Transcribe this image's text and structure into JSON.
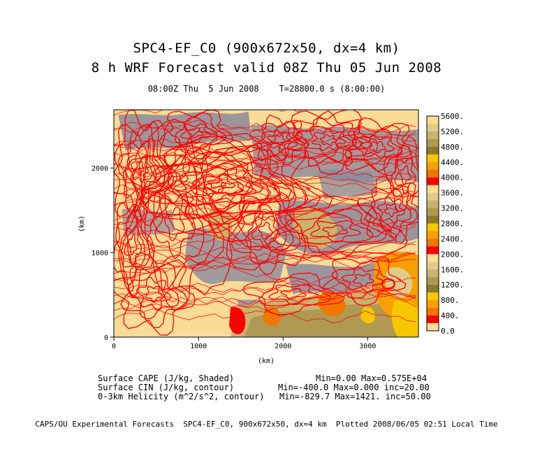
{
  "title_line1": "SPC4-EF_C0 (900x672x50, dx=4 km)",
  "title_line2": "8 h WRF Forecast valid 08Z Thu 05 Jun 2008",
  "subtitle_time": "08:00Z Thu  5 Jun 2008",
  "subtitle_t": "T=28800.0 s (8:00:00)",
  "x_axis": {
    "label": "(km)",
    "ticks": [
      "0",
      "1000",
      "2000",
      "3000"
    ],
    "tick_values": [
      0,
      1000,
      2000,
      3000
    ],
    "range": [
      0,
      3600
    ]
  },
  "y_axis": {
    "label": "(km)",
    "ticks": [
      "0",
      "1000",
      "2000"
    ],
    "tick_values": [
      0,
      1000,
      2000
    ],
    "range": [
      0,
      2688
    ]
  },
  "colorbar": {
    "labels": [
      "5600.",
      "5200.",
      "4800.",
      "4400.",
      "4000.",
      "3600.",
      "3200.",
      "2800.",
      "2400.",
      "2000.",
      "1600.",
      "1200.",
      "800.",
      "400.",
      "0.0"
    ],
    "label_values": [
      5600,
      5200,
      4800,
      4400,
      4000,
      3600,
      3200,
      2800,
      2400,
      2000,
      1600,
      1200,
      800,
      400,
      0
    ],
    "colors": [
      "#fadc96",
      "#e0cc8a",
      "#c9b46e",
      "#b09a52",
      "#8c7a30",
      "#f7c800",
      "#f7a000",
      "#f07800",
      "#ff0000",
      "#fadc96",
      "#e0cc8a",
      "#c9b46e",
      "#b09a52",
      "#8c7a30",
      "#f7c800",
      "#f7a000",
      "#f07800",
      "#ff0000",
      "#fadc96",
      "#e0cc8a",
      "#c9b46e",
      "#b09a52",
      "#8c7a30",
      "#f7c800",
      "#f7a000",
      "#f07800",
      "#ff0000",
      "#fadc96"
    ]
  },
  "legend_rows": [
    {
      "name": "Surface CAPE (J/kg, Shaded)",
      "stats": "Min=0.00 Max=0.575E+04"
    },
    {
      "name": "Surface CIN (J/kg, contour)",
      "stats": "Min=-400.0 Max=0.000 inc=20.00"
    },
    {
      "name": "0-3km Helicity (m^2/s^2, contour)",
      "stats": "Min=-829.7 Max=1421. inc=50.00"
    }
  ],
  "credit": "CAPS/OU Experimental Forecasts  SPC4-EF_C0, 900x672x50, dx=4 km  Plotted 2008/06/05 02:51 Local Time",
  "colors": {
    "cin_gray": "#8a8a9e",
    "helicity_red": "#ff0000",
    "background_tan": "#fadc96"
  }
}
